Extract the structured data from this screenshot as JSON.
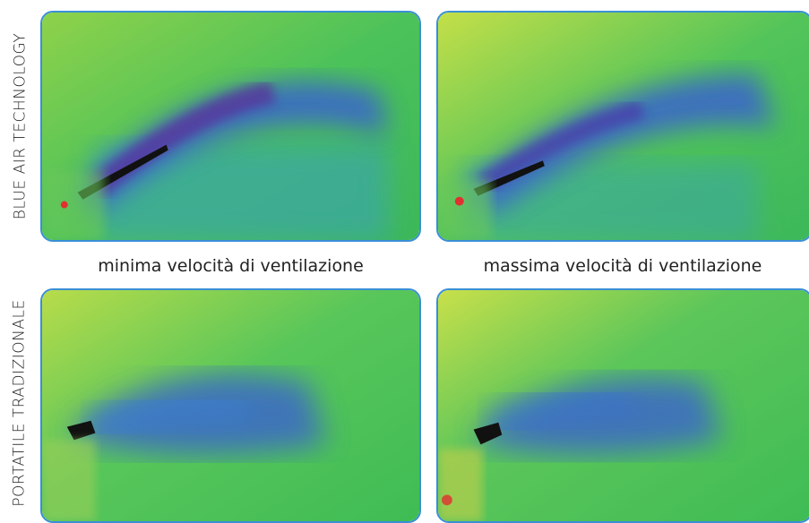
{
  "rows": [
    {
      "label": "BLUE AIR TECHNOLOGY"
    },
    {
      "label": "PORTATILE TRADIZIONALE"
    }
  ],
  "captions": [
    "minima velocità di ventilazione",
    "massima velocità di ventilazione"
  ],
  "colors": {
    "frame_border": "#3a8fd6",
    "thermal_green": "#3fbf55",
    "thermal_blue": "#3a5fd0",
    "thermal_purple": "#5a2a9a",
    "thermal_yellow": "#c8e04a"
  }
}
